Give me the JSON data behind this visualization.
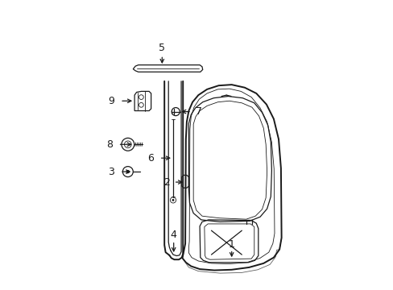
{
  "background_color": "#ffffff",
  "line_color": "#1a1a1a",
  "figsize": [
    4.89,
    3.6
  ],
  "dpi": 100,
  "xlim": [
    0,
    10
  ],
  "ylim": [
    0,
    10
  ]
}
